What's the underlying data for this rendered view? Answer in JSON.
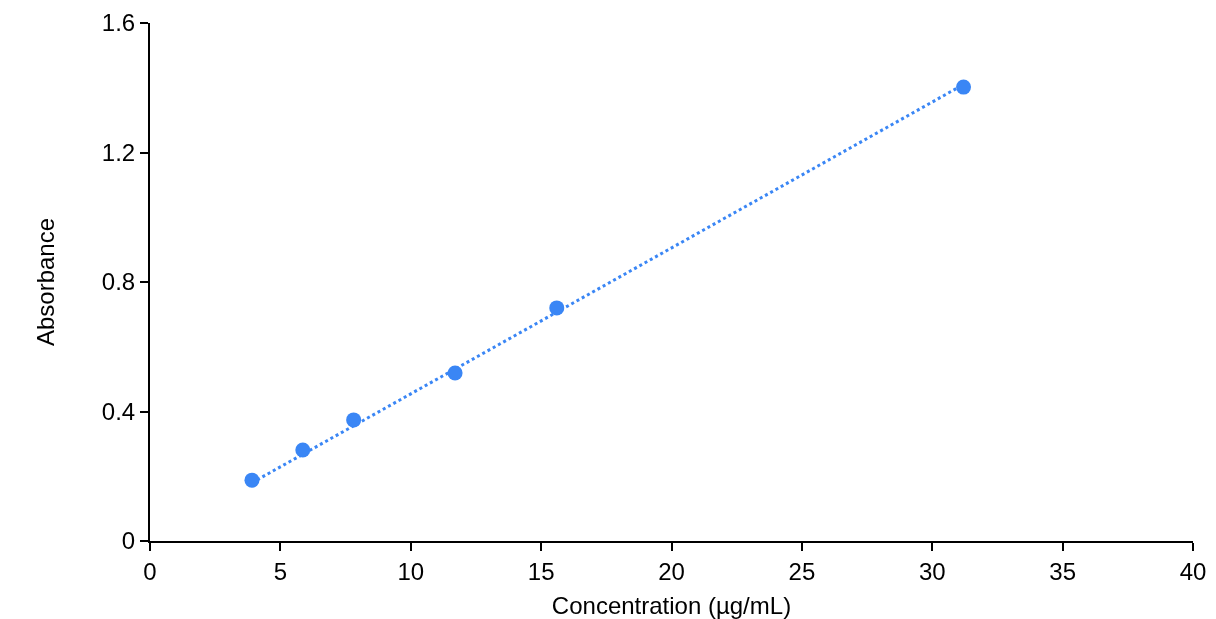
{
  "chart_data": {
    "type": "scatter",
    "xlabel": "Concentration (µg/mL)",
    "ylabel": "Absorbance",
    "x": [
      3.91,
      5.86,
      7.81,
      11.7,
      15.6,
      31.2
    ],
    "series": [
      {
        "color": "#3a86f5",
        "marker": "circle",
        "values": [
          0.188,
          0.281,
          0.374,
          0.519,
          0.72,
          1.402
        ]
      },
      {
        "type": "line",
        "color": "#3a86f5",
        "marker": "none",
        "line_style": "dotted",
        "x": [
          3.91,
          31.2
        ],
        "values": [
          0.18,
          1.41
        ]
      }
    ],
    "xlim": [
      0,
      40
    ],
    "xticks": [
      0,
      5,
      10,
      15,
      20,
      25,
      30,
      35,
      40
    ],
    "ylim": [
      0,
      1.6
    ],
    "yticks": [
      0,
      0.4,
      0.8,
      1.2,
      1.6
    ]
  }
}
